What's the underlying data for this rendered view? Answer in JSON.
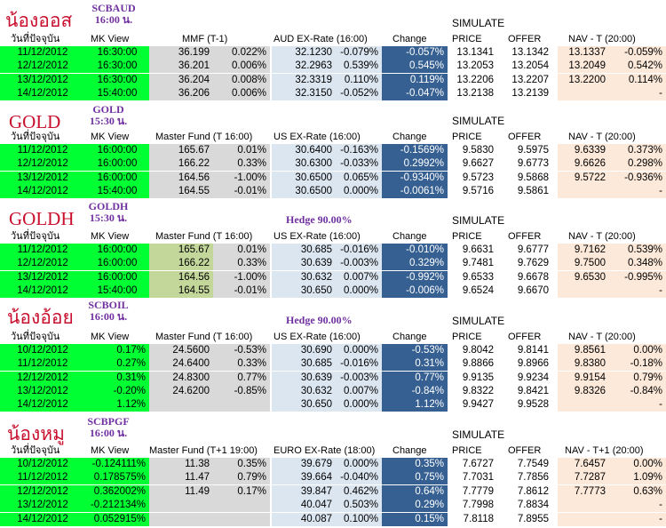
{
  "sections": [
    {
      "title": "น้องออส",
      "code": "SCBAUD",
      "code_time": "16:00 น.",
      "hedge": "",
      "headers": {
        "date": "วันที่ปัจจุบัน",
        "mk": "MK View",
        "fund": "MMF (T-1)",
        "ex": "AUD EX-Rate (16:00)",
        "chg": "Change",
        "price": "PRICE",
        "offer": "OFFER",
        "nav": "NAV - T (20:00)"
      },
      "rows": [
        {
          "date": "11/12/2012",
          "mk": "16:30:00",
          "fv": "36.199",
          "fp": "0.022%",
          "ev": "32.1230",
          "ep": "-0.079%",
          "chg": "-0.057%",
          "price": "13.1341",
          "offer": "13.1342",
          "nv": "13.1337",
          "np": "-0.059%"
        },
        {
          "date": "12/12/2012",
          "mk": "16:30:00",
          "fv": "36.201",
          "fp": "0.006%",
          "ev": "32.2963",
          "ep": "0.539%",
          "chg": "0.545%",
          "price": "13.2053",
          "offer": "13.2054",
          "nv": "13.2049",
          "np": "0.542%"
        },
        {
          "date": "13/12/2012",
          "mk": "16:30:00",
          "fv": "36.204",
          "fp": "0.008%",
          "ev": "32.3319",
          "ep": "0.110%",
          "chg": "0.119%",
          "price": "13.2206",
          "offer": "13.2207",
          "nv": "13.2200",
          "np": "0.114%"
        },
        {
          "date": "14/12/2012",
          "mk": "15:40:00",
          "fv": "36.206",
          "fp": "0.006%",
          "ev": "32.3150",
          "ep": "-0.052%",
          "chg": "-0.047%",
          "price": "13.2138",
          "offer": "13.2139",
          "nv": "",
          "np": "-"
        }
      ]
    },
    {
      "title": "GOLD",
      "code": "GOLD",
      "code_time": "15:30 น.",
      "hedge": "",
      "headers": {
        "date": "วันที่ปัจจุบัน",
        "mk": "MK View",
        "fund": "Master Fund (T 16:00)",
        "ex": "US EX-Rate (16:00)",
        "chg": "Change",
        "price": "PRICE",
        "offer": "OFFER",
        "nav": "NAV - T (20:00)"
      },
      "rows": [
        {
          "date": "11/12/2012",
          "mk": "16:00:00",
          "fv": "165.67",
          "fp": "0.01%",
          "ev": "30.6400",
          "ep": "-0.163%",
          "chg": "-0.1569%",
          "price": "9.5830",
          "offer": "9.5975",
          "nv": "9.6339",
          "np": "0.373%"
        },
        {
          "date": "12/12/2012",
          "mk": "16:00:00",
          "fv": "166.22",
          "fp": "0.33%",
          "ev": "30.6300",
          "ep": "-0.033%",
          "chg": "0.2992%",
          "price": "9.6627",
          "offer": "9.6773",
          "nv": "9.6626",
          "np": "0.298%"
        },
        {
          "date": "13/12/2012",
          "mk": "16:00:00",
          "fv": "164.56",
          "fp": "-1.00%",
          "ev": "30.6500",
          "ep": "0.065%",
          "chg": "-0.9340%",
          "price": "9.5723",
          "offer": "9.5868",
          "nv": "9.5722",
          "np": "-0.936%"
        },
        {
          "date": "14/12/2012",
          "mk": "15:40:00",
          "fv": "164.55",
          "fp": "-0.01%",
          "ev": "30.6500",
          "ep": "0.000%",
          "chg": "-0.0061%",
          "price": "9.5716",
          "offer": "9.5861",
          "nv": "",
          "np": "-"
        }
      ]
    },
    {
      "title": "GOLDH",
      "code": "GOLDH",
      "code_time": "15:30 น.",
      "hedge": "Hedge 90.00%",
      "headers": {
        "date": "วันที่ปัจจุบัน",
        "mk": "MK View",
        "fund": "Master Fund (T 16:00)",
        "ex": "US EX-Rate (16:00)",
        "chg": "Change",
        "price": "PRICE",
        "offer": "OFFER",
        "nav": "NAV - T (20:00)"
      },
      "rows": [
        {
          "date": "11/12/2012",
          "mk": "16:00:00",
          "fv": "165.67",
          "fp": "0.01%",
          "ev": "30.685",
          "ep": "-0.016%",
          "chg": "-0.010%",
          "price": "9.6631",
          "offer": "9.6777",
          "nv": "9.7162",
          "np": "0.539%"
        },
        {
          "date": "12/12/2012",
          "mk": "16:00:00",
          "fv": "166.22",
          "fp": "0.33%",
          "ev": "30.639",
          "ep": "-0.003%",
          "chg": "0.329%",
          "price": "9.7481",
          "offer": "9.7629",
          "nv": "9.7500",
          "np": "0.348%"
        },
        {
          "date": "13/12/2012",
          "mk": "16:00:00",
          "fv": "164.56",
          "fp": "-1.00%",
          "ev": "30.632",
          "ep": "0.007%",
          "chg": "-0.992%",
          "price": "9.6533",
          "offer": "9.6678",
          "nv": "9.6530",
          "np": "-0.995%"
        },
        {
          "date": "14/12/2012",
          "mk": "15:40:00",
          "fv": "164.55",
          "fp": "-0.01%",
          "ev": "30.650",
          "ep": "0.000%",
          "chg": "-0.006%",
          "price": "9.6524",
          "offer": "9.6670",
          "nv": "",
          "np": "-"
        }
      ]
    },
    {
      "title": "น้องอ้อย",
      "code": "SCBOIL",
      "code_time": "16:00 น.",
      "hedge": "Hedge 90.00%",
      "headers": {
        "date": "วันที่ปัจจุบัน",
        "mk": "MK View",
        "fund": "Master Fund (T 16:00)",
        "ex": "US EX-Rate (16:00)",
        "chg": "Change",
        "price": "PRICE",
        "offer": "OFFER",
        "nav": "NAV - T (20:00)"
      },
      "rows": [
        {
          "date": "10/12/2012",
          "mk": "0.17%",
          "fv": "24.5600",
          "fp": "-0.53%",
          "ev": "30.690",
          "ep": "0.000%",
          "chg": "-0.53%",
          "price": "9.8042",
          "offer": "9.8141",
          "nv": "9.8561",
          "np": "0.00%"
        },
        {
          "date": "11/12/2012",
          "mk": "0.27%",
          "fv": "24.6400",
          "fp": "0.33%",
          "ev": "30.685",
          "ep": "-0.016%",
          "chg": "0.31%",
          "price": "9.8866",
          "offer": "9.8966",
          "nv": "9.8380",
          "np": "-0.18%"
        },
        {
          "date": "12/12/2012",
          "mk": "0.31%",
          "fv": "24.8300",
          "fp": "0.77%",
          "ev": "30.639",
          "ep": "-0.003%",
          "chg": "0.77%",
          "price": "9.9135",
          "offer": "9.9234",
          "nv": "9.9154",
          "np": "0.79%"
        },
        {
          "date": "13/12/2012",
          "mk": "-0.20%",
          "fv": "24.6200",
          "fp": "-0.85%",
          "ev": "30.632",
          "ep": "0.007%",
          "chg": "-0.84%",
          "price": "9.8322",
          "offer": "9.8421",
          "nv": "9.8326",
          "np": "-0.84%"
        },
        {
          "date": "14/12/2012",
          "mk": "1.12%",
          "fv": "",
          "fp": "",
          "ev": "30.650",
          "ep": "0.000%",
          "chg": "1.12%",
          "price": "9.9427",
          "offer": "9.9528",
          "nv": "",
          "np": "-"
        }
      ]
    },
    {
      "title": "น้องหมู",
      "code": "SCBPGF",
      "code_time": "16:00 น.",
      "hedge": "",
      "headers": {
        "date": "วันที่ปัจจุบัน",
        "mk": "MK View",
        "fund": "Master Fund (T+1 19:00)",
        "ex": "EURO EX-Rate (18:00)",
        "chg": "Change",
        "price": "PRICE",
        "offer": "OFFER",
        "nav": "NAV - T+1 (20:00)"
      },
      "rows": [
        {
          "date": "10/12/2012",
          "mk": "-0.124111%",
          "fv": "11.38",
          "fp": "0.35%",
          "ev": "39.679",
          "ep": "0.000%",
          "chg": "0.35%",
          "price": "7.6727",
          "offer": "7.7549",
          "nv": "7.6457",
          "np": "0.00%"
        },
        {
          "date": "11/12/2012",
          "mk": "0.178575%",
          "fv": "11.47",
          "fp": "0.79%",
          "ev": "39.664",
          "ep": "-0.040%",
          "chg": "0.75%",
          "price": "7.7031",
          "offer": "7.7856",
          "nv": "7.7287",
          "np": "1.09%"
        },
        {
          "date": "12/12/2012",
          "mk": "0.362002%",
          "fv": "11.49",
          "fp": "0.17%",
          "ev": "39.847",
          "ep": "0.462%",
          "chg": "0.64%",
          "price": "7.7779",
          "offer": "7.8612",
          "nv": "7.7773",
          "np": "0.63%"
        },
        {
          "date": "13/12/2012",
          "mk": "-0.212134%",
          "fv": "",
          "fp": "",
          "ev": "40.047",
          "ep": "0.503%",
          "chg": "0.29%",
          "price": "7.7998",
          "offer": "7.8834",
          "nv": "",
          "np": "-"
        },
        {
          "date": "14/12/2012",
          "mk": "0.052915%",
          "fv": "",
          "fp": "",
          "ev": "40.087",
          "ep": "0.100%",
          "chg": "0.15%",
          "price": "7.8118",
          "offer": "7.8955",
          "nv": "",
          "np": "-"
        }
      ]
    }
  ],
  "simulate_label": "SIMULATE"
}
